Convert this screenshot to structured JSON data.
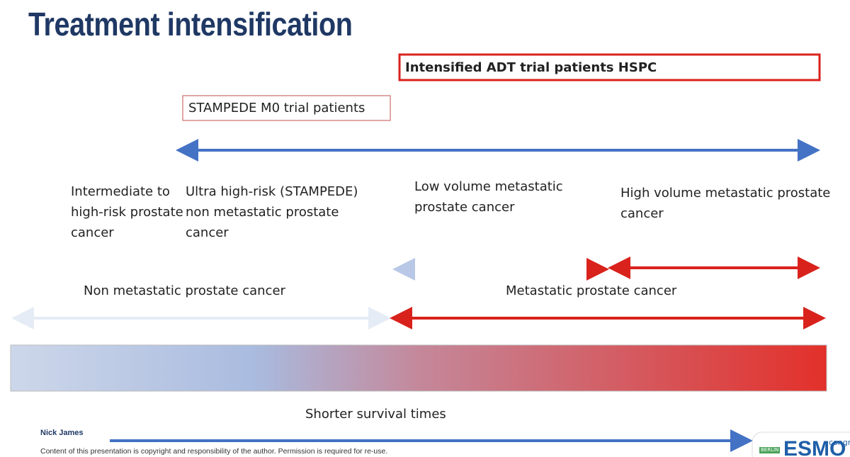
{
  "header": {
    "title": "Treatment intensification"
  },
  "boxes": {
    "intensified": "Intensified ADT trial patients HSPC",
    "stampede": "STAMPEDE M0 trial patients"
  },
  "stages": [
    "Intermediate to high-risk prostate cancer",
    "Ultra high-risk (STAMPEDE) non metastatic prostate cancer",
    "Low volume metastatic prostate cancer",
    "High volume metastatic prostate cancer"
  ],
  "sections": {
    "non_metastatic": "Non metastatic prostate cancer",
    "metastatic": "Metastatic prostate cancer"
  },
  "gradient_label": "Shorter survival times",
  "footer": {
    "author": "Nick James",
    "copyright": "Content of this presentation is copyright and responsibility of the author. Permission is required for re-use.",
    "logo_city": "BERLIN",
    "logo": "ESMO",
    "logo_suffix": "congr"
  }
}
